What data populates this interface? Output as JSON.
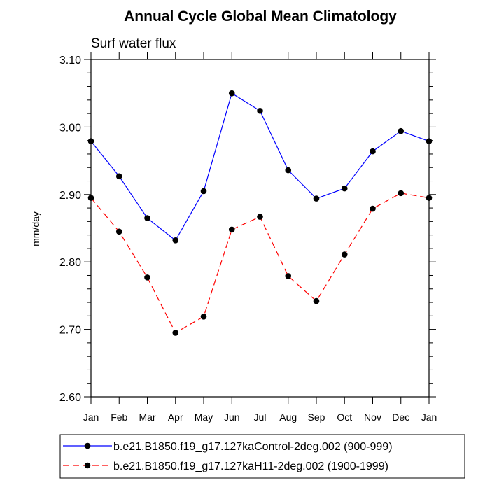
{
  "chart_data": {
    "type": "line",
    "title": "Annual Cycle Global Mean Climatology",
    "subtitle": "Surf water flux",
    "xlabel": "",
    "ylabel": "mm/day",
    "categories": [
      "Jan",
      "Feb",
      "Mar",
      "Apr",
      "May",
      "Jun",
      "Jul",
      "Aug",
      "Sep",
      "Oct",
      "Nov",
      "Dec",
      "Jan"
    ],
    "ylim": [
      2.6,
      3.1
    ],
    "yticks": [
      "2.60",
      "2.70",
      "2.80",
      "2.90",
      "3.00",
      "3.10"
    ],
    "grid": false,
    "legend_position": "bottom",
    "series": [
      {
        "name": "b.e21.B1850.f19_g17.127kaControl-2deg.002 (900-999)",
        "color": "#0000ff",
        "dash": "solid",
        "values": [
          2.979,
          2.927,
          2.865,
          2.832,
          2.905,
          3.05,
          3.024,
          2.936,
          2.894,
          2.909,
          2.964,
          2.994,
          2.979
        ]
      },
      {
        "name": "b.e21.B1850.f19_g17.127kaH11-2deg.002 (1900-1999)",
        "color": "#ff0000",
        "dash": "dashed",
        "values": [
          2.895,
          2.845,
          2.777,
          2.695,
          2.719,
          2.848,
          2.867,
          2.779,
          2.742,
          2.811,
          2.879,
          2.902,
          2.895
        ]
      }
    ]
  }
}
